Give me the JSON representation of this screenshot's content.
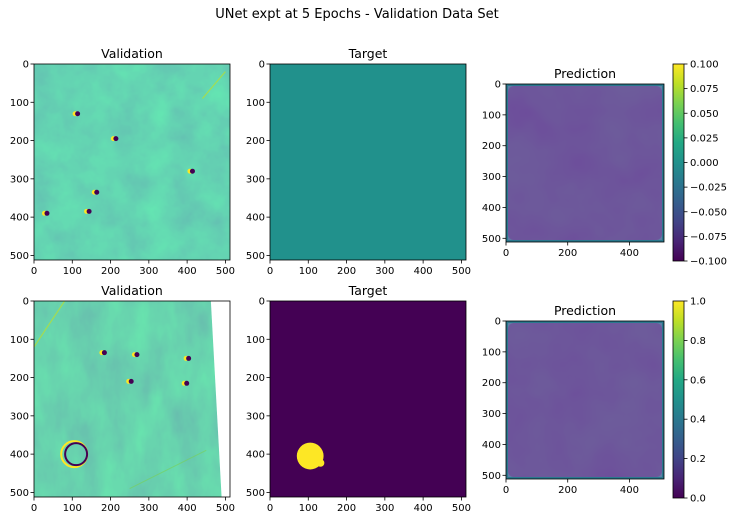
{
  "figure": {
    "suptitle": "UNet expt at 5 Epochs - Validation Data Set"
  },
  "colors": {
    "viridis": [
      "#440154",
      "#482475",
      "#414487",
      "#355f8d",
      "#2a788e",
      "#21918c",
      "#22a884",
      "#44bf70",
      "#7ad151",
      "#bddf26",
      "#fde725"
    ],
    "target_flat": "#21918c",
    "mask_background": "#440154",
    "mask_object": "#fde725"
  },
  "chart_data": [
    {
      "type": "heatmap",
      "title": "Validation",
      "image": "terrain-relief",
      "x_ticks": [
        0,
        100,
        200,
        300,
        400,
        500
      ],
      "y_ticks": [
        0,
        100,
        200,
        300,
        400,
        500
      ],
      "xlim": [
        0,
        512
      ],
      "ylim": [
        512,
        0
      ]
    },
    {
      "type": "heatmap",
      "title": "Target",
      "image": "uniform",
      "value": 0,
      "x_ticks": [
        0,
        100,
        200,
        300,
        400,
        500
      ],
      "y_ticks": [
        0,
        100,
        200,
        300,
        400,
        500
      ],
      "xlim": [
        0,
        512
      ],
      "ylim": [
        512,
        0
      ]
    },
    {
      "type": "heatmap",
      "title": "Prediction",
      "image": "predicted-mask",
      "x_ticks": [
        0,
        200,
        400
      ],
      "y_ticks": [
        0,
        100,
        200,
        300,
        400,
        500
      ],
      "xlim": [
        0,
        512
      ],
      "ylim": [
        512,
        0
      ],
      "colorbar": {
        "ticks": [
          0.1,
          0.075,
          0.05,
          0.025,
          0.0,
          -0.025,
          -0.05,
          -0.075,
          -0.1
        ],
        "labels": [
          "0.100",
          "0.075",
          "0.050",
          "0.025",
          "0.000",
          "−0.025",
          "−0.050",
          "−0.075",
          "−0.100"
        ],
        "range": [
          -0.1,
          0.1
        ]
      }
    },
    {
      "type": "heatmap",
      "title": "Validation",
      "image": "terrain-relief",
      "x_ticks": [
        0,
        100,
        200,
        300,
        400,
        500
      ],
      "y_ticks": [
        0,
        100,
        200,
        300,
        400,
        500
      ],
      "xlim": [
        0,
        512
      ],
      "ylim": [
        512,
        0
      ]
    },
    {
      "type": "heatmap",
      "title": "Target",
      "image": "binary-mask",
      "objects": [
        {
          "cx": 105,
          "cy": 405,
          "r": 35
        },
        {
          "cx": 132,
          "cy": 423,
          "r": 10
        }
      ],
      "x_ticks": [
        0,
        100,
        200,
        300,
        400,
        500
      ],
      "y_ticks": [
        0,
        100,
        200,
        300,
        400,
        500
      ],
      "xlim": [
        0,
        512
      ],
      "ylim": [
        512,
        0
      ]
    },
    {
      "type": "heatmap",
      "title": "Prediction",
      "image": "predicted-mask",
      "x_ticks": [
        0,
        200,
        400
      ],
      "y_ticks": [
        0,
        100,
        200,
        300,
        400,
        500
      ],
      "xlim": [
        0,
        512
      ],
      "ylim": [
        512,
        0
      ],
      "colorbar": {
        "ticks": [
          1.0,
          0.8,
          0.6,
          0.4,
          0.2,
          0.0
        ],
        "labels": [
          "1.0",
          "0.8",
          "0.6",
          "0.4",
          "0.2",
          "0.0"
        ],
        "range": [
          0,
          1
        ]
      }
    }
  ]
}
